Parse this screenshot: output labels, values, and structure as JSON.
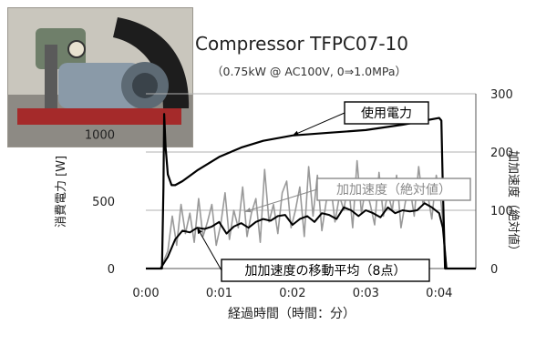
{
  "chart_data": {
    "type": "line",
    "title": "Compressor TFPC07-10",
    "subtitle": "（0.75kW @ AC100V, 0⇒1.0MPa）",
    "xlabel": "経過時間（時間：分）",
    "ylabel_left": "消費電力 [W]",
    "ylabel_right": "加加速度（絶対値）",
    "x_ticks": [
      "0:00",
      "0:01",
      "0:02",
      "0:03",
      "0:04"
    ],
    "x_tick_minutes": [
      0,
      1,
      2,
      3,
      4
    ],
    "xlim_minutes": [
      0,
      4.5
    ],
    "y_left_ticks": [
      "0",
      "500",
      "1000"
    ],
    "y_left_tick_values": [
      0,
      500,
      1000
    ],
    "ylim_left": [
      0,
      1300
    ],
    "y_right_ticks": [
      "0",
      "100",
      "200",
      "300"
    ],
    "y_right_tick_values": [
      0,
      100,
      200,
      300
    ],
    "ylim_right": [
      0,
      300
    ],
    "grid": "horizontal",
    "series": [
      {
        "name": "使用電力",
        "axis": "left",
        "color": "#000000",
        "x": [
          0.0,
          0.22,
          0.24,
          0.25,
          0.27,
          0.3,
          0.35,
          0.4,
          0.5,
          0.7,
          1.0,
          1.3,
          1.6,
          2.0,
          2.5,
          3.0,
          3.5,
          3.8,
          4.0,
          4.03,
          4.05,
          4.08,
          4.5
        ],
        "values": [
          0,
          0,
          600,
          1150,
          900,
          700,
          620,
          620,
          650,
          730,
          830,
          900,
          950,
          990,
          1010,
          1030,
          1070,
          1100,
          1120,
          1100,
          600,
          0,
          0
        ]
      },
      {
        "name": "加加速度（絶対値）",
        "axis": "right",
        "color": "#999999",
        "x": [
          0.0,
          0.2,
          0.3,
          0.36,
          0.42,
          0.48,
          0.54,
          0.6,
          0.66,
          0.72,
          0.78,
          0.84,
          0.9,
          0.96,
          1.02,
          1.08,
          1.14,
          1.2,
          1.26,
          1.32,
          1.38,
          1.44,
          1.5,
          1.56,
          1.62,
          1.68,
          1.74,
          1.8,
          1.86,
          1.92,
          1.98,
          2.04,
          2.1,
          2.16,
          2.22,
          2.28,
          2.34,
          2.4,
          2.46,
          2.52,
          2.58,
          2.64,
          2.7,
          2.76,
          2.82,
          2.88,
          2.94,
          3.0,
          3.06,
          3.12,
          3.18,
          3.24,
          3.3,
          3.36,
          3.42,
          3.48,
          3.54,
          3.6,
          3.66,
          3.72,
          3.78,
          3.84,
          3.9,
          3.96,
          4.02,
          4.06,
          4.1,
          4.5
        ],
        "values": [
          0,
          0,
          30,
          90,
          40,
          110,
          60,
          95,
          45,
          120,
          55,
          80,
          110,
          40,
          75,
          130,
          50,
          100,
          70,
          140,
          55,
          95,
          120,
          45,
          170,
          80,
          110,
          60,
          130,
          150,
          70,
          100,
          140,
          55,
          175,
          90,
          160,
          65,
          115,
          145,
          80,
          125,
          100,
          150,
          70,
          185,
          95,
          140,
          110,
          75,
          165,
          90,
          130,
          100,
          160,
          70,
          115,
          140,
          90,
          175,
          110,
          130,
          85,
          160,
          120,
          70,
          0,
          0
        ]
      },
      {
        "name": "加加速度の移動平均（8点）",
        "axis": "right",
        "color": "#000000",
        "x": [
          0.0,
          0.2,
          0.3,
          0.4,
          0.5,
          0.6,
          0.7,
          0.8,
          0.9,
          1.0,
          1.1,
          1.2,
          1.3,
          1.4,
          1.5,
          1.6,
          1.7,
          1.8,
          1.9,
          2.0,
          2.1,
          2.2,
          2.3,
          2.4,
          2.5,
          2.6,
          2.7,
          2.8,
          2.9,
          3.0,
          3.1,
          3.2,
          3.3,
          3.4,
          3.5,
          3.6,
          3.7,
          3.8,
          3.9,
          4.0,
          4.05,
          4.1,
          4.5
        ],
        "values": [
          0,
          0,
          20,
          50,
          65,
          62,
          70,
          68,
          72,
          80,
          60,
          72,
          78,
          70,
          80,
          85,
          82,
          90,
          92,
          75,
          85,
          90,
          80,
          95,
          92,
          85,
          105,
          100,
          90,
          100,
          95,
          88,
          105,
          95,
          100,
          98,
          100,
          112,
          105,
          95,
          70,
          0,
          0
        ]
      }
    ],
    "annotations": [
      {
        "text": "使用電力",
        "series": "使用電力",
        "arrow_to_minute": 2.0
      },
      {
        "text": "加加速度（絶対値）",
        "series": "加加速度（絶対値）",
        "arrow_to_minute": 1.35
      },
      {
        "text": "加加速度の移動平均（8点）",
        "series": "加加速度の移動平均（8点）",
        "arrow_to_minute": 0.7
      }
    ]
  }
}
